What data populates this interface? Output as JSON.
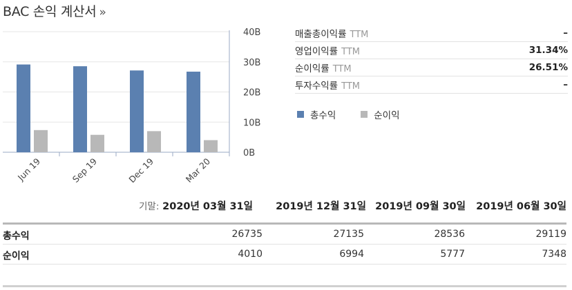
{
  "header": {
    "title": "BAC 손익 계산서",
    "more_glyph": "»"
  },
  "metrics": [
    {
      "label": "매출총이익률",
      "suffix": "TTM",
      "value": "–"
    },
    {
      "label": "영업이익률",
      "suffix": "TTM",
      "value": "31.34%"
    },
    {
      "label": "순이익률",
      "suffix": "TTM",
      "value": "26.51%"
    },
    {
      "label": "투자수익률",
      "suffix": "TTM",
      "value": "–"
    }
  ],
  "legend": [
    {
      "name": "총수익",
      "color": "#5b80b0"
    },
    {
      "name": "순이익",
      "color": "#b8b8b8"
    }
  ],
  "chart_data": {
    "type": "bar",
    "categories": [
      "Jun 19",
      "Sep 19",
      "Dec 19",
      "Mar 20"
    ],
    "series": [
      {
        "name": "총수익",
        "color": "#5b80b0",
        "values": [
          29119,
          28536,
          27135,
          26735
        ]
      },
      {
        "name": "순이익",
        "color": "#b8b8b8",
        "values": [
          7348,
          5777,
          6994,
          4010
        ]
      }
    ],
    "yticks": [
      "0B",
      "10B",
      "20B",
      "30B",
      "40B"
    ],
    "ylim": [
      0,
      40000
    ],
    "ytick_values": [
      0,
      10000,
      20000,
      30000,
      40000
    ],
    "grid": true
  },
  "table": {
    "base_label": "기말:",
    "dates": [
      "2020년 03월 31일",
      "2019년 12월 31일",
      "2019년 09월 30일",
      "2019년 06월 30일"
    ],
    "rows": [
      {
        "label": "총수익",
        "values": [
          "26735",
          "27135",
          "28536",
          "29119"
        ]
      },
      {
        "label": "순이익",
        "values": [
          "4010",
          "6994",
          "5777",
          "7348"
        ]
      }
    ]
  }
}
